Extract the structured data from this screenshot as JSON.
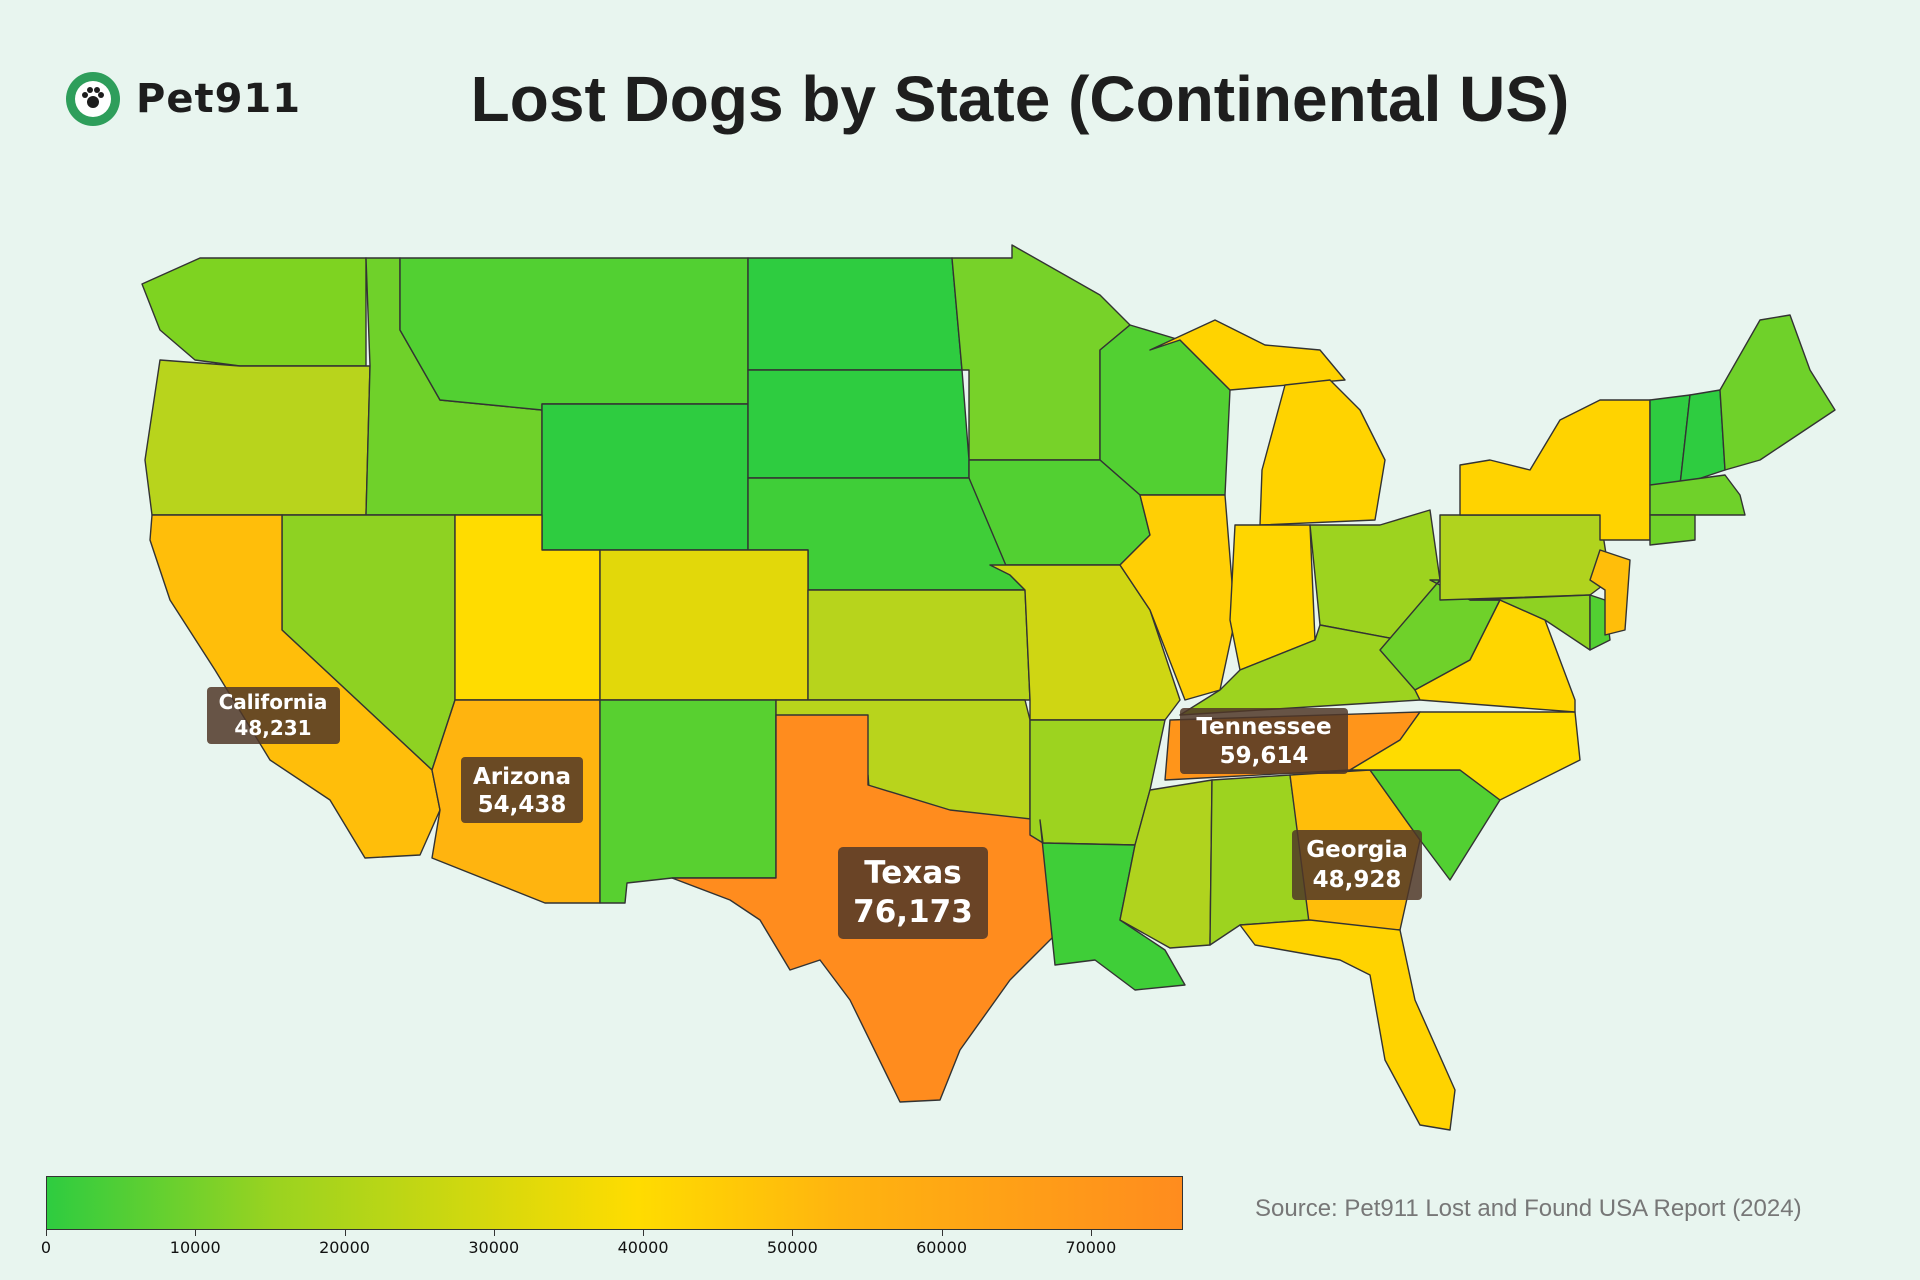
{
  "brand": {
    "name": "Pet911"
  },
  "title": "Lost Dogs by State (Continental US)",
  "source": "Source: Pet911 Lost and Found USA Report (2024)",
  "legend": {
    "min": 0,
    "max": 76173,
    "ticks": [
      "0",
      "10000",
      "20000",
      "30000",
      "40000",
      "50000",
      "60000",
      "70000"
    ]
  },
  "colors": {
    "background": "#e8f5ef",
    "scale_low": "#2ecc40",
    "scale_mid": "#ffdc00",
    "scale_high": "#ff8c1e",
    "label_box": "#503728"
  },
  "highlighted_states": [
    {
      "name": "Texas",
      "value": "76,173"
    },
    {
      "name": "Tennessee",
      "value": "59,614"
    },
    {
      "name": "Arizona",
      "value": "54,438"
    },
    {
      "name": "Georgia",
      "value": "48,928"
    },
    {
      "name": "California",
      "value": "48,231"
    }
  ]
}
